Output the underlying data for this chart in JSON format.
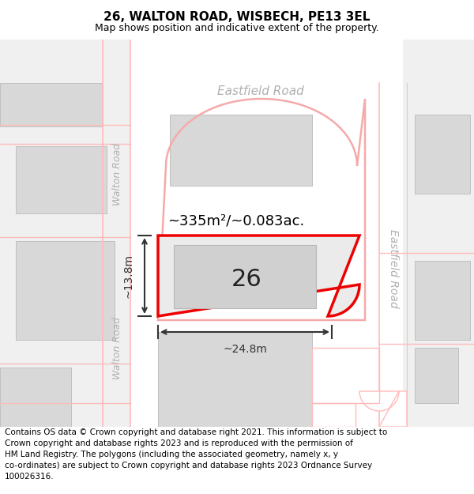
{
  "title": "26, WALTON ROAD, WISBECH, PE13 3EL",
  "subtitle": "Map shows position and indicative extent of the property.",
  "footer": "Contains OS data © Crown copyright and database right 2021. This information is subject to\nCrown copyright and database rights 2023 and is reproduced with the permission of\nHM Land Registry. The polygons (including the associated geometry, namely x, y\nco-ordinates) are subject to Crown copyright and database rights 2023 Ordnance Survey\n100026316.",
  "area_text": "~335m²/~0.083ac.",
  "number_label": "26",
  "dim_width": "~24.8m",
  "dim_height": "~13.8m",
  "road_east": "Eastfield Road",
  "road_north": "Eastfield Road",
  "road_west1": "Walton Road",
  "road_west2": "Walton Road",
  "bg_color": "#ffffff",
  "map_bg": "#f0f0f0",
  "lot_bg": "#ffffff",
  "plot_fill": "#ebebeb",
  "plot_border_red": "#ee0000",
  "outer_lot_color": "#f5aaaa",
  "road_label_color": "#b0b0b0",
  "neighbor_fill": "#d8d8d8",
  "neighbor_edge": "#c0c0c0",
  "building_fill": "#d0d0d0",
  "building_edge": "#b8b8b8",
  "dim_color": "#333333",
  "title_fontsize": 11,
  "subtitle_fontsize": 9,
  "footer_fontsize": 7.5,
  "area_fontsize": 13,
  "number_fontsize": 22,
  "road_label_fontsize": 10,
  "dim_fontsize": 10
}
